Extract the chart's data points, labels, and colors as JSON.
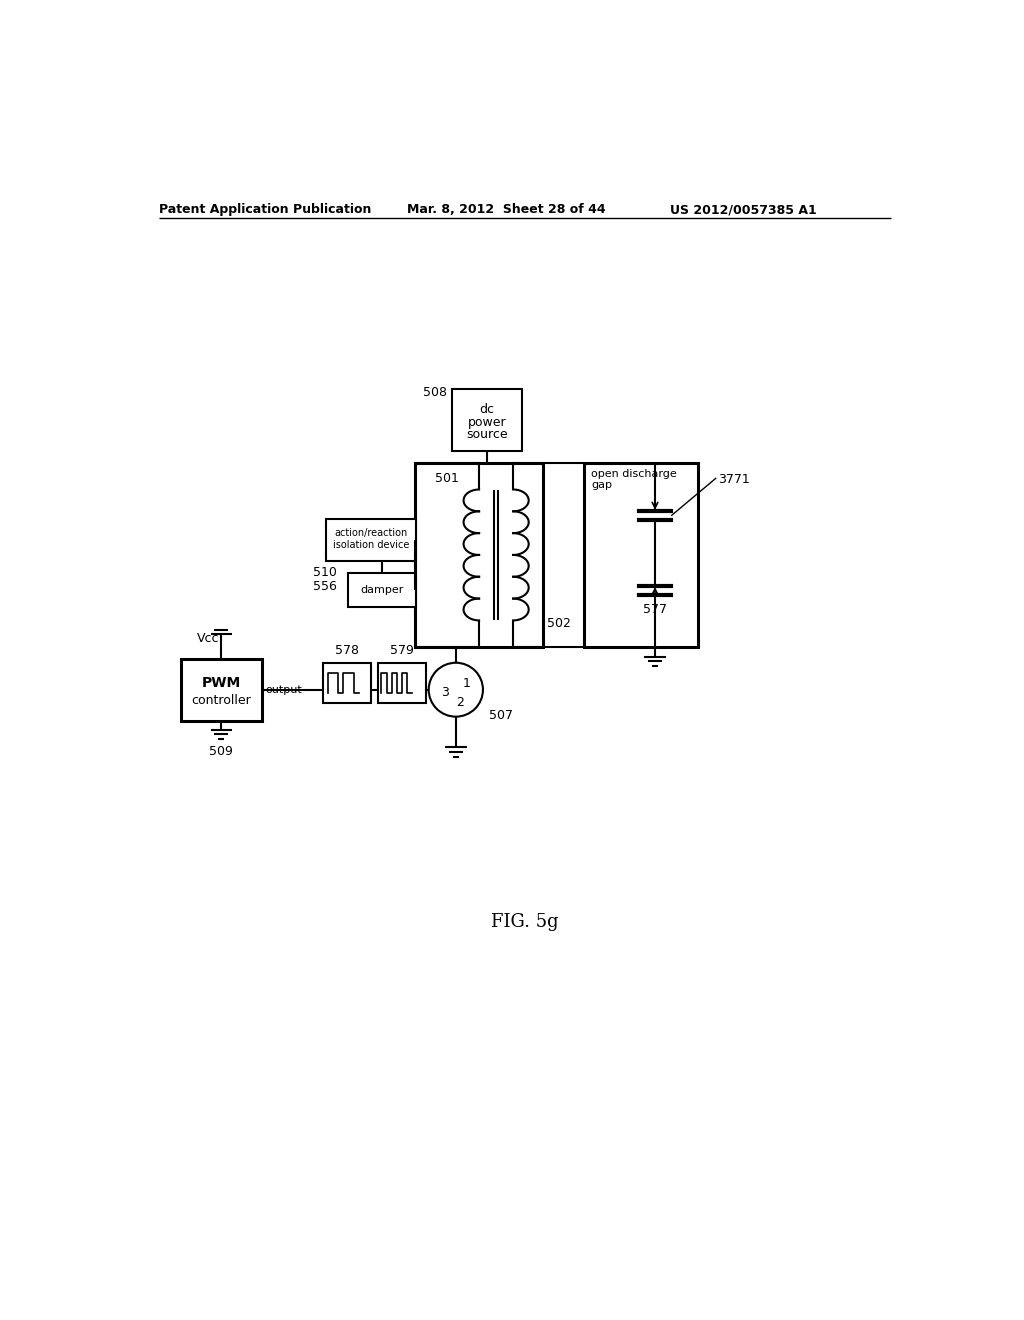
{
  "bg_color": "#ffffff",
  "line_color": "#000000",
  "header_left": "Patent Application Publication",
  "header_mid": "Mar. 8, 2012  Sheet 28 of 44",
  "header_right": "US 2012/0057385 A1",
  "figure_label": "FIG. 5g"
}
